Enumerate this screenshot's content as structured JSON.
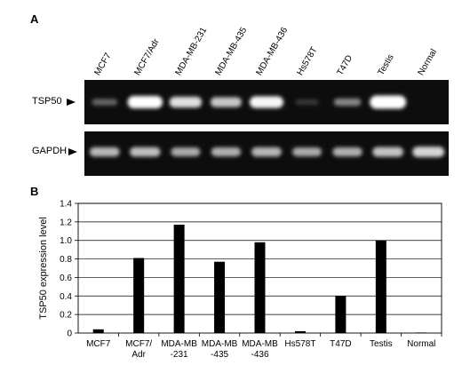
{
  "panels": {
    "a": "A",
    "b": "B"
  },
  "gel": {
    "lanes": [
      "MCF7",
      "MCF7/Adr",
      "MDA-MB-231",
      "MDA-MB-435",
      "MDA-MB-436",
      "Hs578T",
      "T47D",
      "Testis",
      "Normal"
    ],
    "rows": [
      {
        "label": "TSP50",
        "intensities": [
          0.22,
          0.9,
          0.72,
          0.62,
          0.82,
          0.05,
          0.35,
          1.0,
          0.0
        ]
      },
      {
        "label": "GAPDH",
        "intensities": [
          0.55,
          0.58,
          0.5,
          0.52,
          0.55,
          0.5,
          0.52,
          0.6,
          0.68
        ]
      }
    ],
    "background": "#0d0d0d",
    "band_color": "#ffffff"
  },
  "chart_data": {
    "type": "bar",
    "categories": [
      [
        "MCF7"
      ],
      [
        "MCF7/",
        "Adr"
      ],
      [
        "MDA-MB",
        "-231"
      ],
      [
        "MDA-MB",
        "-435"
      ],
      [
        "MDA-MB",
        "-436"
      ],
      [
        "Hs578T"
      ],
      [
        "T47D"
      ],
      [
        "Testis"
      ],
      [
        "Normal"
      ]
    ],
    "values": [
      0.04,
      0.81,
      1.17,
      0.77,
      0.98,
      0.02,
      0.4,
      1.0,
      0.0
    ],
    "ylabel": "TSP50 expression level",
    "ylim": [
      0,
      1.4
    ],
    "yticks": [
      "0",
      "0.2",
      "0.4",
      "0.6",
      "0.8",
      "1.0",
      "1.2",
      "1.4"
    ],
    "grid": "y",
    "bar_color": "#000000"
  }
}
